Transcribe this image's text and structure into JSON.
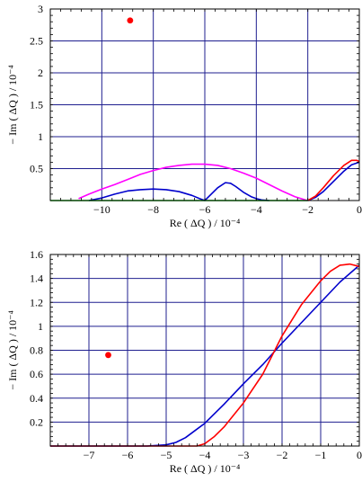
{
  "chart_data": [
    {
      "type": "line",
      "xlabel": "Re ( ΔQ ) / 10⁻⁴",
      "ylabel": "− Im ( ΔQ ) / 10⁻⁴",
      "xlim": [
        -12,
        0
      ],
      "ylim": [
        0,
        3
      ],
      "grid": true,
      "x_ticks": [
        -10,
        -8,
        -6,
        -4,
        -2,
        0
      ],
      "y_ticks": [
        0.5,
        1,
        1.5,
        2,
        2.5,
        3
      ],
      "x_tick_labels": [
        "−10",
        "−8",
        "−6",
        "−4",
        "−2",
        "0"
      ],
      "y_tick_labels": [
        "0.5",
        "1",
        "1.5",
        "2",
        "2.5",
        "3"
      ],
      "series": [
        {
          "color": "#ff00ff",
          "x": [
            -10.9,
            -10.5,
            -10,
            -9.5,
            -9,
            -8.5,
            -8,
            -7.5,
            -7,
            -6.5,
            -6,
            -5.5,
            -5,
            -4.5,
            -4,
            -3.5,
            -3,
            -2.5,
            -2.1,
            -2
          ],
          "y": [
            0.03,
            0.1,
            0.18,
            0.25,
            0.33,
            0.41,
            0.47,
            0.52,
            0.55,
            0.57,
            0.57,
            0.55,
            0.5,
            0.43,
            0.35,
            0.25,
            0.15,
            0.06,
            0.01,
            0.0
          ]
        },
        {
          "color": "#0000cc",
          "x": [
            -10.5,
            -10,
            -9.5,
            -9,
            -8.5,
            -8,
            -7.5,
            -7,
            -6.5,
            -6.2,
            -6,
            -5.8,
            -5.5,
            -5.2,
            -5,
            -4.8,
            -4.5,
            -4.2,
            -4,
            -3.8,
            -3.5
          ],
          "y": [
            0.0,
            0.04,
            0.1,
            0.15,
            0.17,
            0.18,
            0.17,
            0.14,
            0.08,
            0.03,
            0.0,
            0.08,
            0.2,
            0.28,
            0.27,
            0.22,
            0.13,
            0.06,
            0.03,
            0.01,
            0.0
          ]
        },
        {
          "color": "#0000cc",
          "x": [
            -2,
            -1.7,
            -1.4,
            -1,
            -0.6,
            -0.3,
            0
          ],
          "y": [
            0.0,
            0.05,
            0.14,
            0.3,
            0.46,
            0.56,
            0.6
          ]
        },
        {
          "color": "#ff0000",
          "x": [
            -2,
            -1.7,
            -1.4,
            -1,
            -0.6,
            -0.3,
            -0.1,
            0
          ],
          "y": [
            0.0,
            0.07,
            0.2,
            0.39,
            0.55,
            0.63,
            0.63,
            0.61
          ]
        },
        {
          "color": "#00cc00",
          "x": [
            -12,
            -10.5,
            -6,
            -3.5,
            -2
          ],
          "y": [
            0.0,
            0.0,
            0.0,
            0.0,
            0.0
          ]
        }
      ],
      "points": [
        {
          "color": "#ff0000",
          "x": -8.9,
          "y": 2.82
        }
      ]
    },
    {
      "type": "line",
      "xlabel": "Re ( ΔQ ) / 10⁻⁴",
      "ylabel": "− Im ( ΔQ ) / 10⁻⁴",
      "xlim": [
        -8,
        0
      ],
      "ylim": [
        0,
        1.6
      ],
      "grid": true,
      "x_ticks": [
        -7,
        -6,
        -5,
        -4,
        -3,
        -2,
        -1,
        0
      ],
      "y_ticks": [
        0.2,
        0.4,
        0.6,
        0.8,
        1,
        1.2,
        1.4,
        1.6
      ],
      "x_tick_labels": [
        "−7",
        "−6",
        "−5",
        "−4",
        "−3",
        "−2",
        "−1",
        "0"
      ],
      "y_tick_labels": [
        "0.2",
        "0.4",
        "0.6",
        "0.8",
        "1",
        "1.2",
        "1.4",
        "1.6"
      ],
      "series": [
        {
          "color": "#0000cc",
          "x": [
            -8,
            -6.5,
            -5.5,
            -5,
            -4.75,
            -4.5,
            -4.25,
            -4,
            -3.5,
            -3,
            -2.5,
            -2,
            -1.5,
            -1,
            -0.5,
            0
          ],
          "y": [
            0.0,
            0.0,
            0.0,
            0.01,
            0.03,
            0.07,
            0.13,
            0.19,
            0.35,
            0.52,
            0.68,
            0.86,
            1.03,
            1.2,
            1.37,
            1.51
          ]
        },
        {
          "color": "#ff0000",
          "x": [
            -8,
            -5,
            -4.2,
            -4,
            -3.75,
            -3.5,
            -3,
            -2.5,
            -2,
            -1.5,
            -1,
            -0.75,
            -0.5,
            -0.25,
            0
          ],
          "y": [
            0.0,
            0.0,
            0.0,
            0.02,
            0.08,
            0.16,
            0.36,
            0.6,
            0.92,
            1.18,
            1.38,
            1.46,
            1.51,
            1.52,
            1.5
          ]
        }
      ],
      "points": [
        {
          "color": "#ff0000",
          "x": -6.5,
          "y": 0.76
        }
      ]
    }
  ]
}
